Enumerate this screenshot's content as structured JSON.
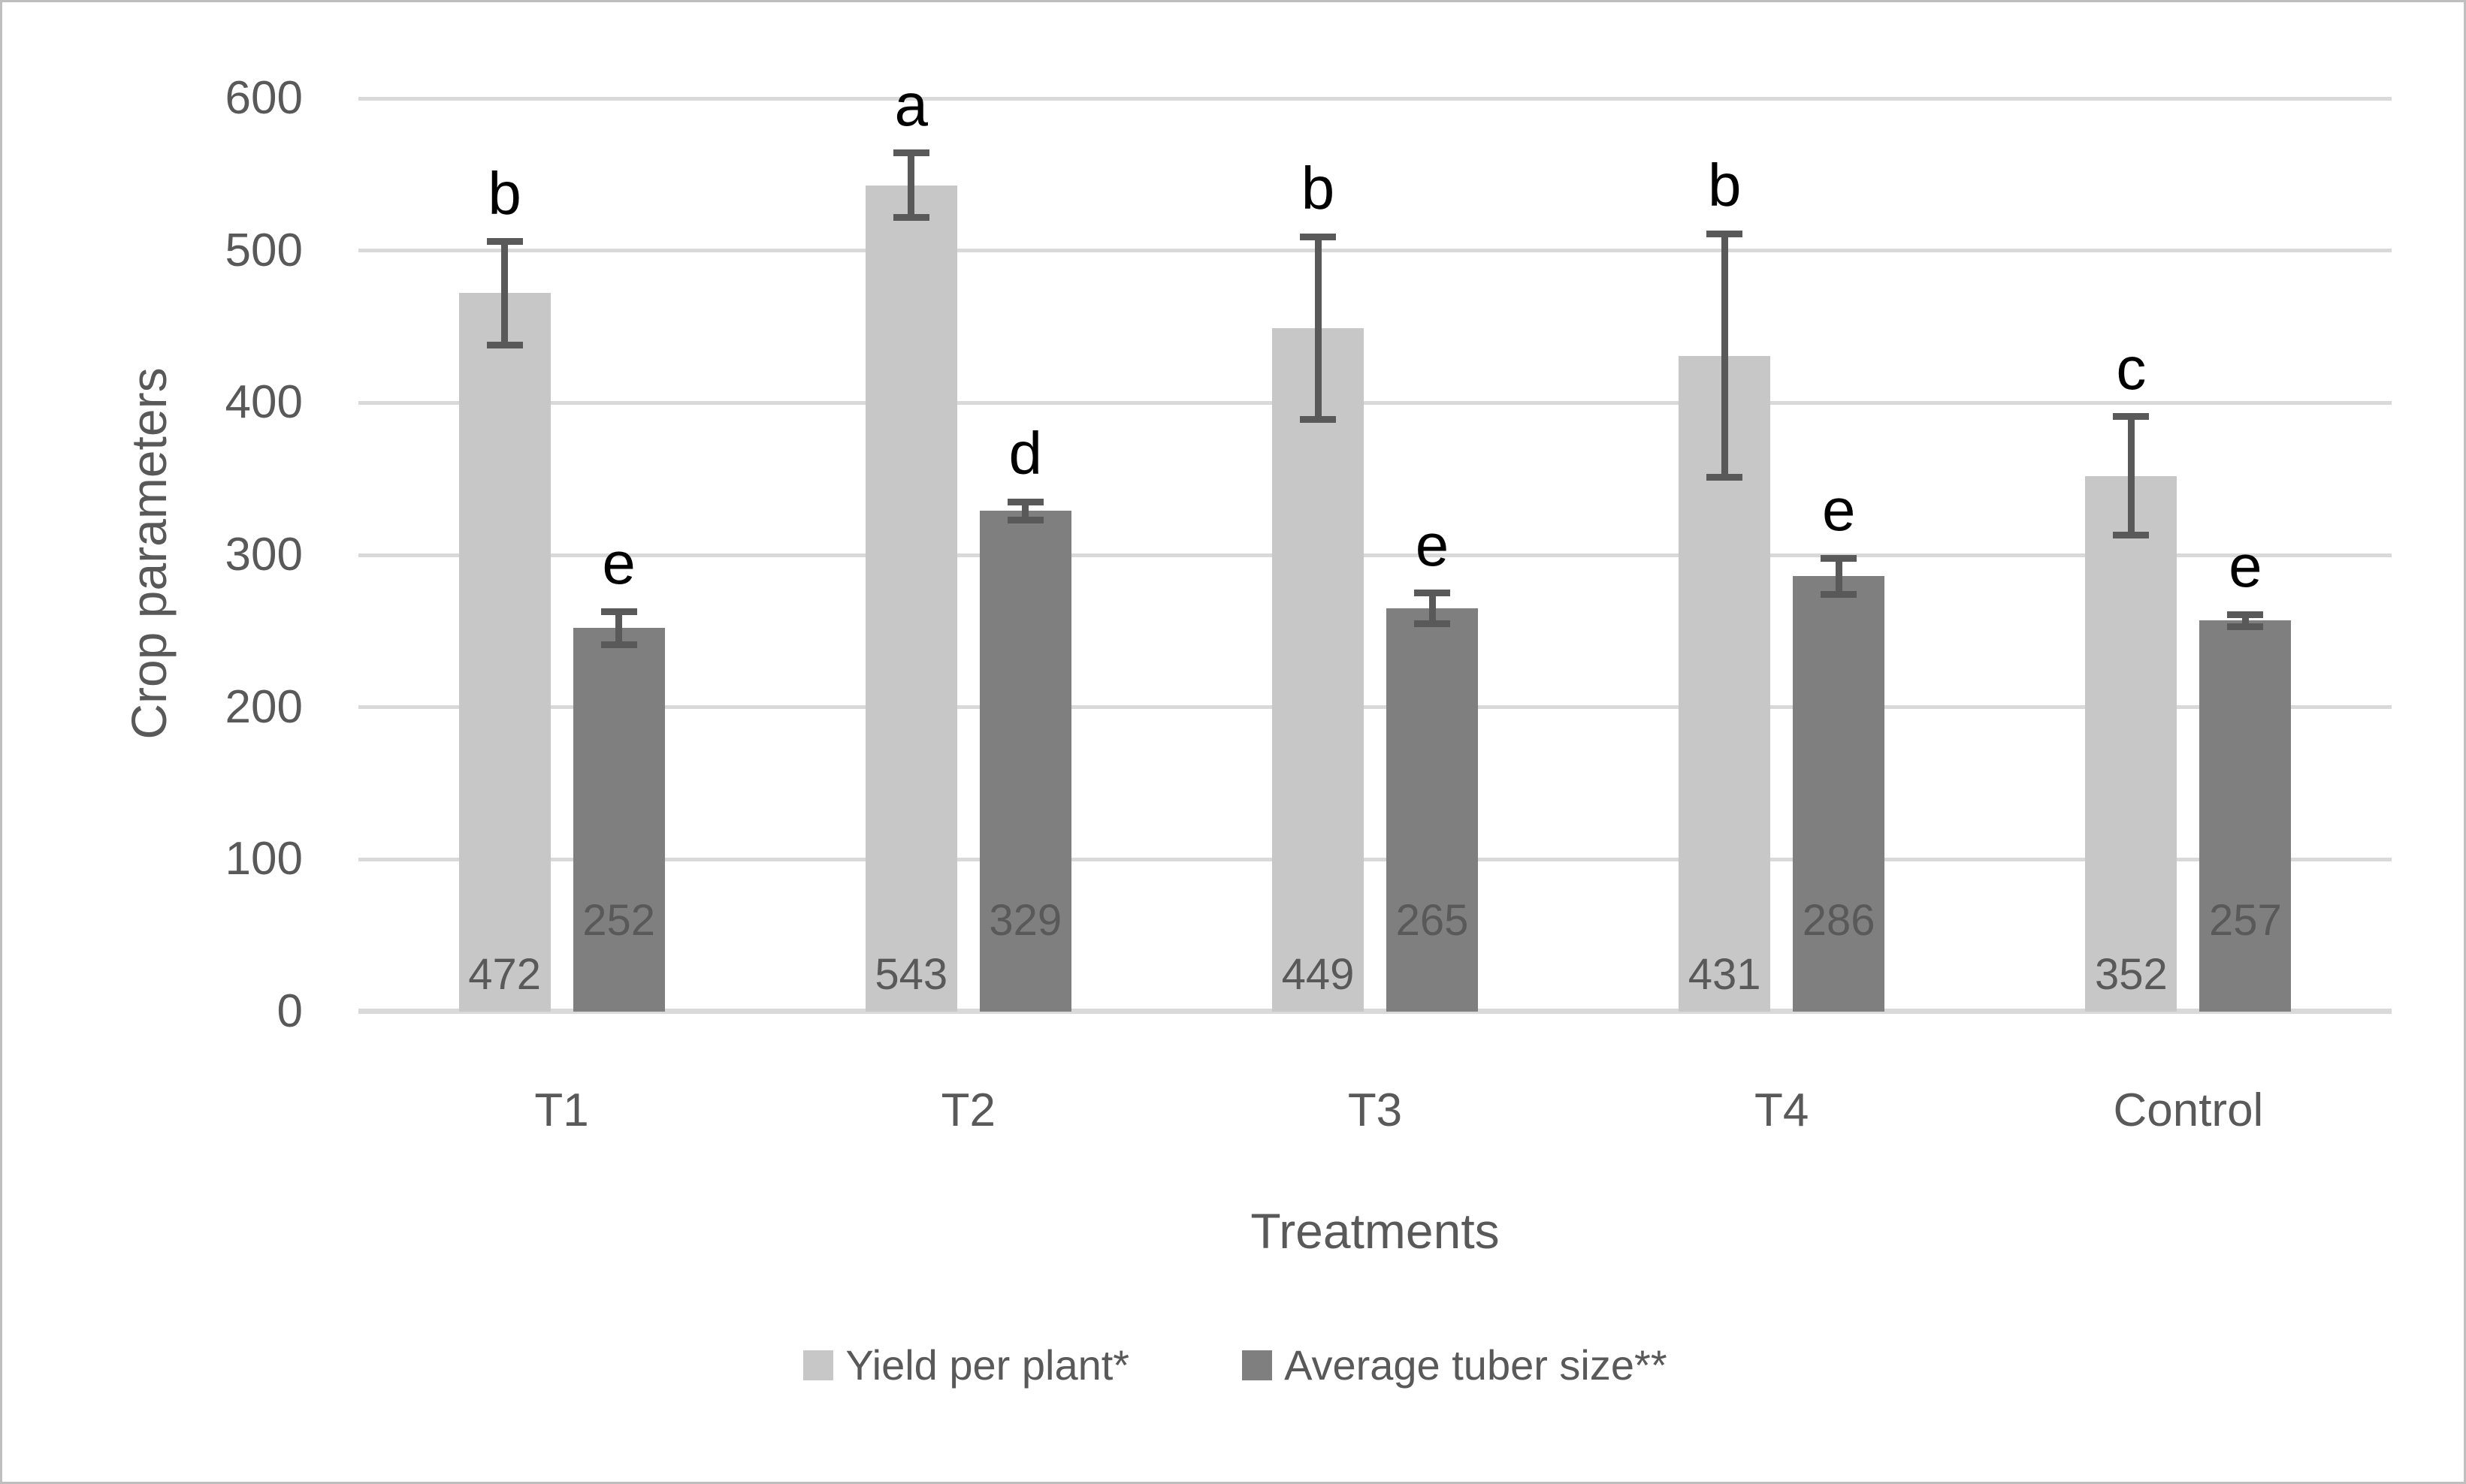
{
  "figure": {
    "background": "#ffffff",
    "border_color": "#bfbfbf"
  },
  "chart_data": {
    "type": "bar",
    "title": "",
    "xlabel": "Treatments",
    "ylabel": "Crop parameters",
    "ylim": [
      0,
      600
    ],
    "yticks": [
      0,
      100,
      200,
      300,
      400,
      500,
      600
    ],
    "grid": true,
    "legend_position": "bottom",
    "categories": [
      "T1",
      "T2",
      "T3",
      "T4",
      "Control"
    ],
    "series": [
      {
        "name": "Yield per plant*",
        "color": "#c7c7c7",
        "values": [
          472,
          543,
          449,
          431,
          352
        ],
        "errors": [
          34,
          21,
          60,
          80,
          39
        ],
        "sig_letters": [
          "b",
          "a",
          "b",
          "b",
          "c"
        ]
      },
      {
        "name": "Average tuber size**",
        "color": "#7f7f7f",
        "values": [
          252,
          329,
          265,
          286,
          257
        ],
        "errors": [
          11,
          6,
          10,
          12,
          4
        ],
        "sig_letters": [
          "e",
          "d",
          "e",
          "e",
          "e"
        ]
      }
    ],
    "colors": {
      "grid": "#d9d9d9",
      "axis": "#d9d9d9",
      "error_bar": "#595959",
      "axis_text": "#595959",
      "data_label": "#595959",
      "sig_letter": "#000000"
    }
  }
}
